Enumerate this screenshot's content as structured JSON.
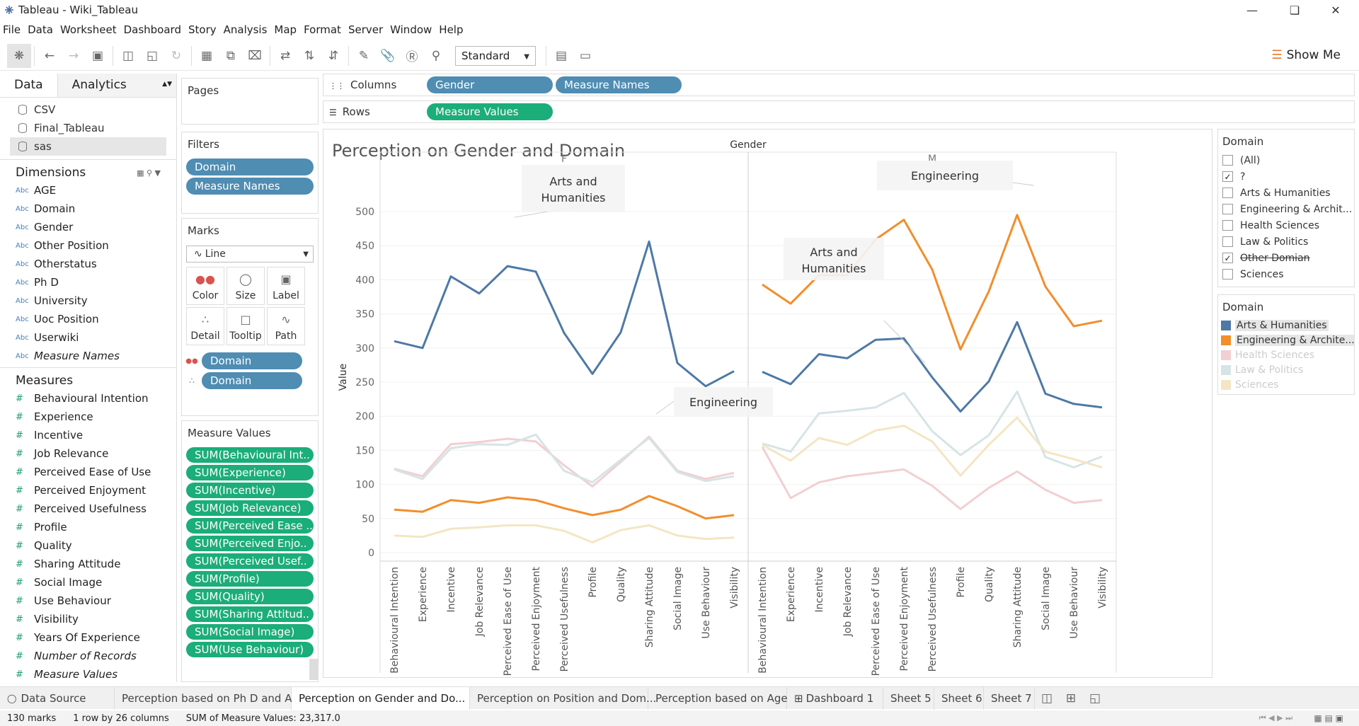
{
  "window": {
    "title": "Tableau - Wiki_Tableau"
  },
  "menu": [
    "File",
    "Data",
    "Worksheet",
    "Dashboard",
    "Story",
    "Analysis",
    "Map",
    "Format",
    "Server",
    "Window",
    "Help"
  ],
  "toolbar": {
    "fit_select": "Standard",
    "show_me": "Show Me"
  },
  "data_pane": {
    "tab_data": "Data",
    "tab_analytics": "Analytics",
    "sources": [
      "CSV",
      "Final_Tableau",
      "sas"
    ],
    "dimensions_header": "Dimensions",
    "dimensions": [
      "AGE",
      "Domain",
      "Gender",
      "Other Position",
      "Otherstatus",
      "Ph D",
      "University",
      "Uoc Position",
      "Userwiki",
      "Measure Names"
    ],
    "measures_header": "Measures",
    "measures": [
      "Behavioural Intention",
      "Experience",
      "Incentive",
      "Job Relevance",
      "Perceived Ease of Use",
      "Perceived Enjoyment",
      "Perceived Usefulness",
      "Profile",
      "Quality",
      "Sharing Attitude",
      "Social Image",
      "Use Behaviour",
      "Visibility",
      "Years Of Experience",
      "Number of Records",
      "Measure Values"
    ]
  },
  "pages": {
    "title": "Pages"
  },
  "filters": {
    "title": "Filters",
    "items": [
      "Domain",
      "Measure Names"
    ]
  },
  "marks": {
    "title": "Marks",
    "type": "Line",
    "buttons": [
      "Color",
      "Size",
      "Label",
      "Detail",
      "Tooltip",
      "Path"
    ],
    "fields": [
      "Domain",
      "Domain"
    ]
  },
  "measure_values": {
    "title": "Measure Values",
    "items": [
      "SUM(Behavioural Int..",
      "SUM(Experience)",
      "SUM(Incentive)",
      "SUM(Job Relevance)",
      "SUM(Perceived Ease ..",
      "SUM(Perceived Enjo..",
      "SUM(Perceived Usef..",
      "SUM(Profile)",
      "SUM(Quality)",
      "SUM(Sharing Attitud..",
      "SUM(Social Image)",
      "SUM(Use Behaviour)"
    ]
  },
  "shelves": {
    "columns_label": "Columns",
    "columns": [
      "Gender",
      "Measure Names"
    ],
    "rows_label": "Rows",
    "rows": [
      "Measure Values"
    ]
  },
  "domain_filter": {
    "title": "Domain",
    "items": [
      {
        "label": "(All)",
        "checked": false
      },
      {
        "label": "?",
        "checked": true
      },
      {
        "label": "Arts & Humanities",
        "checked": false
      },
      {
        "label": "Engineering & Archit...",
        "checked": false
      },
      {
        "label": "Health Sciences",
        "checked": false
      },
      {
        "label": "Law & Politics",
        "checked": false
      },
      {
        "label": "Other Domian",
        "checked": true
      },
      {
        "label": "Sciences",
        "checked": false
      }
    ]
  },
  "domain_legend": {
    "title": "Domain",
    "items": [
      {
        "label": "Arts & Humanities",
        "color": "#4e79a7"
      },
      {
        "label": "Engineering & Archite...",
        "color": "#f28e2b"
      },
      {
        "label": "Health Sciences",
        "color": "#f2cfd2"
      },
      {
        "label": "Law & Politics",
        "color": "#d6e4e6"
      },
      {
        "label": "Sciences",
        "color": "#f3e6c4"
      }
    ]
  },
  "sheets": [
    "Data Source",
    "Perception based on Ph D and A...",
    "Perception on Gender and Do...",
    "Perception on Position and Dom...",
    "Perception based on Age",
    "Dashboard 1",
    "Sheet 5",
    "Sheet 6",
    "Sheet 7"
  ],
  "status": {
    "marks": "130 marks",
    "rows": "1 row by 26 columns",
    "sum": "SUM of Measure Values: 23,317.0"
  },
  "chart_data": {
    "type": "line",
    "title": "Perception on Gender and Domain",
    "column_header": "Gender",
    "panes": [
      "F",
      "M"
    ],
    "ylabel": "Value",
    "ylim": [
      0,
      500
    ],
    "yticks": [
      0,
      50,
      100,
      150,
      200,
      250,
      300,
      350,
      400,
      450,
      500
    ],
    "categories": [
      "Behavioural Intention",
      "Experience",
      "Incentive",
      "Job Relevance",
      "Perceived Ease of Use",
      "Perceived Enjoyment",
      "Perceived Usefulness",
      "Profile",
      "Quality",
      "Sharing Attitude",
      "Social Image",
      "Use Behaviour",
      "Visibility"
    ],
    "series": [
      {
        "name": "Arts & Humanities",
        "color": "#4e79a7",
        "F": [
          310,
          300,
          405,
          380,
          420,
          412,
          322,
          262,
          323,
          456,
          278,
          244,
          266
        ],
        "M": [
          265,
          247,
          291,
          285,
          312,
          314,
          257,
          207,
          251,
          338,
          233,
          218,
          213
        ]
      },
      {
        "name": "Engineering & Archite...",
        "color": "#f28e2b",
        "F": [
          63,
          60,
          77,
          73,
          81,
          77,
          65,
          55,
          63,
          83,
          68,
          50,
          55
        ],
        "M": [
          393,
          365,
          407,
          407,
          459,
          488,
          415,
          298,
          383,
          495,
          390,
          332,
          340
        ]
      },
      {
        "name": "Health Sciences",
        "color": "#f2cfd2",
        "F": [
          123,
          112,
          159,
          162,
          167,
          163,
          128,
          97,
          133,
          170,
          120,
          108,
          117
        ],
        "M": [
          155,
          80,
          103,
          112,
          117,
          122,
          98,
          64,
          95,
          119,
          92,
          73,
          77
        ]
      },
      {
        "name": "Law & Politics",
        "color": "#d6e4e6",
        "F": [
          122,
          108,
          153,
          159,
          158,
          173,
          120,
          103,
          136,
          168,
          118,
          105,
          112
        ],
        "M": [
          160,
          148,
          204,
          208,
          213,
          234,
          178,
          143,
          172,
          236,
          140,
          125,
          141
        ]
      },
      {
        "name": "Sciences",
        "color": "#f3e6c4",
        "F": [
          25,
          23,
          35,
          37,
          40,
          40,
          32,
          15,
          33,
          40,
          25,
          20,
          22
        ],
        "M": [
          158,
          135,
          168,
          158,
          179,
          186,
          163,
          113,
          158,
          198,
          148,
          137,
          125
        ]
      }
    ],
    "annotations": [
      "Arts and Humanities",
      "Engineering",
      "Arts and Humanities",
      "Engineering"
    ]
  }
}
